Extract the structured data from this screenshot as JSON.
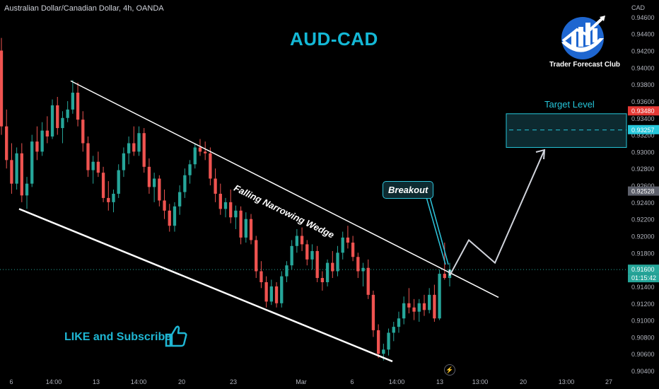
{
  "header": {
    "symbol": "Australian Dollar/Canadian Dollar, 4h, OANDA",
    "currency": "CAD"
  },
  "title": "AUD-CAD",
  "annotations": {
    "wedge_label": "Falling Narrowing Wedge",
    "breakout_label": "Breakout",
    "target_label": "Target Level",
    "cta": "LIKE and Subscribe"
  },
  "logo": {
    "name": "Trader Forecast Club"
  },
  "colors": {
    "up": "#26a69a",
    "down": "#ef5350",
    "accent": "#14b8d6",
    "target_zone": "#0d2a30",
    "price_tag_red": "#e53935",
    "price_tag_cyan": "#26c6da"
  },
  "price_axis": {
    "ticks": [
      "0.94600",
      "0.94400",
      "0.94200",
      "0.94000",
      "0.93800",
      "0.93600",
      "0.93400",
      "0.93200",
      "0.93000",
      "0.92800",
      "0.92600",
      "0.92400",
      "0.92200",
      "0.92000",
      "0.91800",
      "0.91600",
      "0.91400",
      "0.91200",
      "0.91000",
      "0.90800",
      "0.90600",
      "0.90400"
    ],
    "tags": [
      {
        "value": "0.93480",
        "color": "#e53935"
      },
      {
        "value": "0.93257",
        "color": "#26c6da"
      },
      {
        "value": "0.92528",
        "color": "#5d606b"
      },
      {
        "value": "0.91600",
        "color": "#26a69a"
      }
    ],
    "countdown": "01:15:42"
  },
  "time_axis": {
    "ticks": [
      "6",
      "14:00",
      "13",
      "14:00",
      "20",
      "23",
      "Mar",
      "6",
      "14:00",
      "13",
      "13:00",
      "20",
      "13:00",
      "27"
    ]
  },
  "chart_data": {
    "type": "candlestick",
    "symbol": "AUDCAD",
    "timeframe": "4h",
    "ylim": [
      0.9035,
      0.9475
    ],
    "last_price": 0.916,
    "target_zone": {
      "low": 0.9305,
      "high": 0.9345,
      "level": 0.93257
    },
    "trendlines": [
      {
        "name": "upper",
        "from": [
          0.9384,
          100
        ],
        "to": [
          0.9127,
          705
        ]
      },
      {
        "name": "lower",
        "from": [
          0.9232,
          27
        ],
        "to": [
          0.9051,
          555
        ]
      }
    ],
    "projection": [
      [
        0.9153,
        636
      ],
      [
        0.9195,
        663
      ],
      [
        0.9168,
        700
      ],
      [
        0.9302,
        770
      ]
    ],
    "candles": [
      {
        "o": 0.942,
        "h": 0.9435,
        "l": 0.932,
        "c": 0.933
      },
      {
        "o": 0.933,
        "h": 0.935,
        "l": 0.928,
        "c": 0.929
      },
      {
        "o": 0.929,
        "h": 0.931,
        "l": 0.925,
        "c": 0.9262
      },
      {
        "o": 0.9262,
        "h": 0.9305,
        "l": 0.9255,
        "c": 0.9298
      },
      {
        "o": 0.9298,
        "h": 0.931,
        "l": 0.924,
        "c": 0.9248
      },
      {
        "o": 0.9248,
        "h": 0.927,
        "l": 0.9232,
        "c": 0.9262
      },
      {
        "o": 0.9262,
        "h": 0.932,
        "l": 0.9258,
        "c": 0.9312
      },
      {
        "o": 0.9312,
        "h": 0.933,
        "l": 0.929,
        "c": 0.93
      },
      {
        "o": 0.93,
        "h": 0.9335,
        "l": 0.9295,
        "c": 0.9325
      },
      {
        "o": 0.9325,
        "h": 0.9342,
        "l": 0.931,
        "c": 0.9318
      },
      {
        "o": 0.9318,
        "h": 0.9362,
        "l": 0.9315,
        "c": 0.9355
      },
      {
        "o": 0.9355,
        "h": 0.9365,
        "l": 0.932,
        "c": 0.9328
      },
      {
        "o": 0.9328,
        "h": 0.9348,
        "l": 0.931,
        "c": 0.934
      },
      {
        "o": 0.934,
        "h": 0.936,
        "l": 0.9335,
        "c": 0.935
      },
      {
        "o": 0.935,
        "h": 0.9385,
        "l": 0.9345,
        "c": 0.937
      },
      {
        "o": 0.937,
        "h": 0.9382,
        "l": 0.933,
        "c": 0.9338
      },
      {
        "o": 0.9338,
        "h": 0.9348,
        "l": 0.93,
        "c": 0.931
      },
      {
        "o": 0.931,
        "h": 0.9318,
        "l": 0.927,
        "c": 0.9278
      },
      {
        "o": 0.9278,
        "h": 0.9295,
        "l": 0.9262,
        "c": 0.9288
      },
      {
        "o": 0.9288,
        "h": 0.93,
        "l": 0.927,
        "c": 0.9275
      },
      {
        "o": 0.9275,
        "h": 0.9282,
        "l": 0.924,
        "c": 0.9245
      },
      {
        "o": 0.9245,
        "h": 0.9265,
        "l": 0.923,
        "c": 0.924
      },
      {
        "o": 0.924,
        "h": 0.9255,
        "l": 0.9228,
        "c": 0.925
      },
      {
        "o": 0.925,
        "h": 0.9285,
        "l": 0.9245,
        "c": 0.9278
      },
      {
        "o": 0.9278,
        "h": 0.9305,
        "l": 0.927,
        "c": 0.9298
      },
      {
        "o": 0.9298,
        "h": 0.9318,
        "l": 0.9285,
        "c": 0.931
      },
      {
        "o": 0.931,
        "h": 0.933,
        "l": 0.9295,
        "c": 0.93
      },
      {
        "o": 0.93,
        "h": 0.933,
        "l": 0.9295,
        "c": 0.9322
      },
      {
        "o": 0.9322,
        "h": 0.9328,
        "l": 0.9275,
        "c": 0.9282
      },
      {
        "o": 0.9282,
        "h": 0.9292,
        "l": 0.925,
        "c": 0.9258
      },
      {
        "o": 0.9258,
        "h": 0.9275,
        "l": 0.924,
        "c": 0.9268
      },
      {
        "o": 0.9268,
        "h": 0.9272,
        "l": 0.9235,
        "c": 0.9242
      },
      {
        "o": 0.9242,
        "h": 0.9255,
        "l": 0.922,
        "c": 0.923
      },
      {
        "o": 0.923,
        "h": 0.9238,
        "l": 0.9205,
        "c": 0.9212
      },
      {
        "o": 0.9212,
        "h": 0.924,
        "l": 0.9205,
        "c": 0.9235
      },
      {
        "o": 0.9235,
        "h": 0.926,
        "l": 0.9225,
        "c": 0.9252
      },
      {
        "o": 0.9252,
        "h": 0.928,
        "l": 0.9245,
        "c": 0.9272
      },
      {
        "o": 0.9272,
        "h": 0.929,
        "l": 0.9262,
        "c": 0.9285
      },
      {
        "o": 0.9285,
        "h": 0.931,
        "l": 0.928,
        "c": 0.9305
      },
      {
        "o": 0.9305,
        "h": 0.9315,
        "l": 0.9295,
        "c": 0.93
      },
      {
        "o": 0.93,
        "h": 0.9312,
        "l": 0.929,
        "c": 0.9298
      },
      {
        "o": 0.9298,
        "h": 0.9305,
        "l": 0.926,
        "c": 0.9268
      },
      {
        "o": 0.9268,
        "h": 0.928,
        "l": 0.924,
        "c": 0.925
      },
      {
        "o": 0.925,
        "h": 0.9262,
        "l": 0.9225,
        "c": 0.9232
      },
      {
        "o": 0.9232,
        "h": 0.9245,
        "l": 0.9222,
        "c": 0.924
      },
      {
        "o": 0.924,
        "h": 0.9255,
        "l": 0.9215,
        "c": 0.9222
      },
      {
        "o": 0.9222,
        "h": 0.9236,
        "l": 0.9208,
        "c": 0.923
      },
      {
        "o": 0.923,
        "h": 0.9235,
        "l": 0.919,
        "c": 0.9198
      },
      {
        "o": 0.9198,
        "h": 0.9228,
        "l": 0.9192,
        "c": 0.922
      },
      {
        "o": 0.922,
        "h": 0.9226,
        "l": 0.919,
        "c": 0.9195
      },
      {
        "o": 0.9195,
        "h": 0.92,
        "l": 0.915,
        "c": 0.9158
      },
      {
        "o": 0.9158,
        "h": 0.917,
        "l": 0.9138,
        "c": 0.9145
      },
      {
        "o": 0.9145,
        "h": 0.9152,
        "l": 0.9115,
        "c": 0.9122
      },
      {
        "o": 0.9122,
        "h": 0.9148,
        "l": 0.9118,
        "c": 0.914
      },
      {
        "o": 0.914,
        "h": 0.9145,
        "l": 0.9115,
        "c": 0.912
      },
      {
        "o": 0.912,
        "h": 0.9158,
        "l": 0.9115,
        "c": 0.9152
      },
      {
        "o": 0.9152,
        "h": 0.917,
        "l": 0.9145,
        "c": 0.9165
      },
      {
        "o": 0.9165,
        "h": 0.9195,
        "l": 0.916,
        "c": 0.9188
      },
      {
        "o": 0.9188,
        "h": 0.9208,
        "l": 0.918,
        "c": 0.92
      },
      {
        "o": 0.92,
        "h": 0.921,
        "l": 0.9182,
        "c": 0.919
      },
      {
        "o": 0.919,
        "h": 0.9195,
        "l": 0.9165,
        "c": 0.9172
      },
      {
        "o": 0.9172,
        "h": 0.919,
        "l": 0.916,
        "c": 0.9182
      },
      {
        "o": 0.9182,
        "h": 0.9188,
        "l": 0.9145,
        "c": 0.915
      },
      {
        "o": 0.915,
        "h": 0.9158,
        "l": 0.9135,
        "c": 0.9145
      },
      {
        "o": 0.9145,
        "h": 0.9172,
        "l": 0.914,
        "c": 0.9168
      },
      {
        "o": 0.9168,
        "h": 0.9182,
        "l": 0.915,
        "c": 0.9158
      },
      {
        "o": 0.9158,
        "h": 0.9188,
        "l": 0.9152,
        "c": 0.918
      },
      {
        "o": 0.918,
        "h": 0.9205,
        "l": 0.9172,
        "c": 0.9198
      },
      {
        "o": 0.9198,
        "h": 0.9212,
        "l": 0.9185,
        "c": 0.9192
      },
      {
        "o": 0.9192,
        "h": 0.92,
        "l": 0.917,
        "c": 0.9175
      },
      {
        "o": 0.9175,
        "h": 0.918,
        "l": 0.915,
        "c": 0.9158
      },
      {
        "o": 0.9158,
        "h": 0.9168,
        "l": 0.914,
        "c": 0.9162
      },
      {
        "o": 0.9162,
        "h": 0.9172,
        "l": 0.9125,
        "c": 0.913
      },
      {
        "o": 0.913,
        "h": 0.9135,
        "l": 0.908,
        "c": 0.9088
      },
      {
        "o": 0.9088,
        "h": 0.9095,
        "l": 0.9055,
        "c": 0.906
      },
      {
        "o": 0.906,
        "h": 0.9072,
        "l": 0.9052,
        "c": 0.9065
      },
      {
        "o": 0.9065,
        "h": 0.909,
        "l": 0.9058,
        "c": 0.9085
      },
      {
        "o": 0.9085,
        "h": 0.9098,
        "l": 0.9075,
        "c": 0.9092
      },
      {
        "o": 0.9092,
        "h": 0.911,
        "l": 0.9085,
        "c": 0.9102
      },
      {
        "o": 0.9102,
        "h": 0.9128,
        "l": 0.9095,
        "c": 0.912
      },
      {
        "o": 0.912,
        "h": 0.9138,
        "l": 0.9108,
        "c": 0.9115
      },
      {
        "o": 0.9115,
        "h": 0.9125,
        "l": 0.91,
        "c": 0.911
      },
      {
        "o": 0.911,
        "h": 0.9125,
        "l": 0.9098,
        "c": 0.912
      },
      {
        "o": 0.912,
        "h": 0.913,
        "l": 0.9105,
        "c": 0.9112
      },
      {
        "o": 0.9112,
        "h": 0.9138,
        "l": 0.9108,
        "c": 0.913
      },
      {
        "o": 0.913,
        "h": 0.9142,
        "l": 0.9098,
        "c": 0.9102
      },
      {
        "o": 0.9102,
        "h": 0.916,
        "l": 0.91,
        "c": 0.9155
      },
      {
        "o": 0.9155,
        "h": 0.9192,
        "l": 0.9148,
        "c": 0.915
      },
      {
        "o": 0.915,
        "h": 0.9168,
        "l": 0.914,
        "c": 0.916
      }
    ]
  }
}
